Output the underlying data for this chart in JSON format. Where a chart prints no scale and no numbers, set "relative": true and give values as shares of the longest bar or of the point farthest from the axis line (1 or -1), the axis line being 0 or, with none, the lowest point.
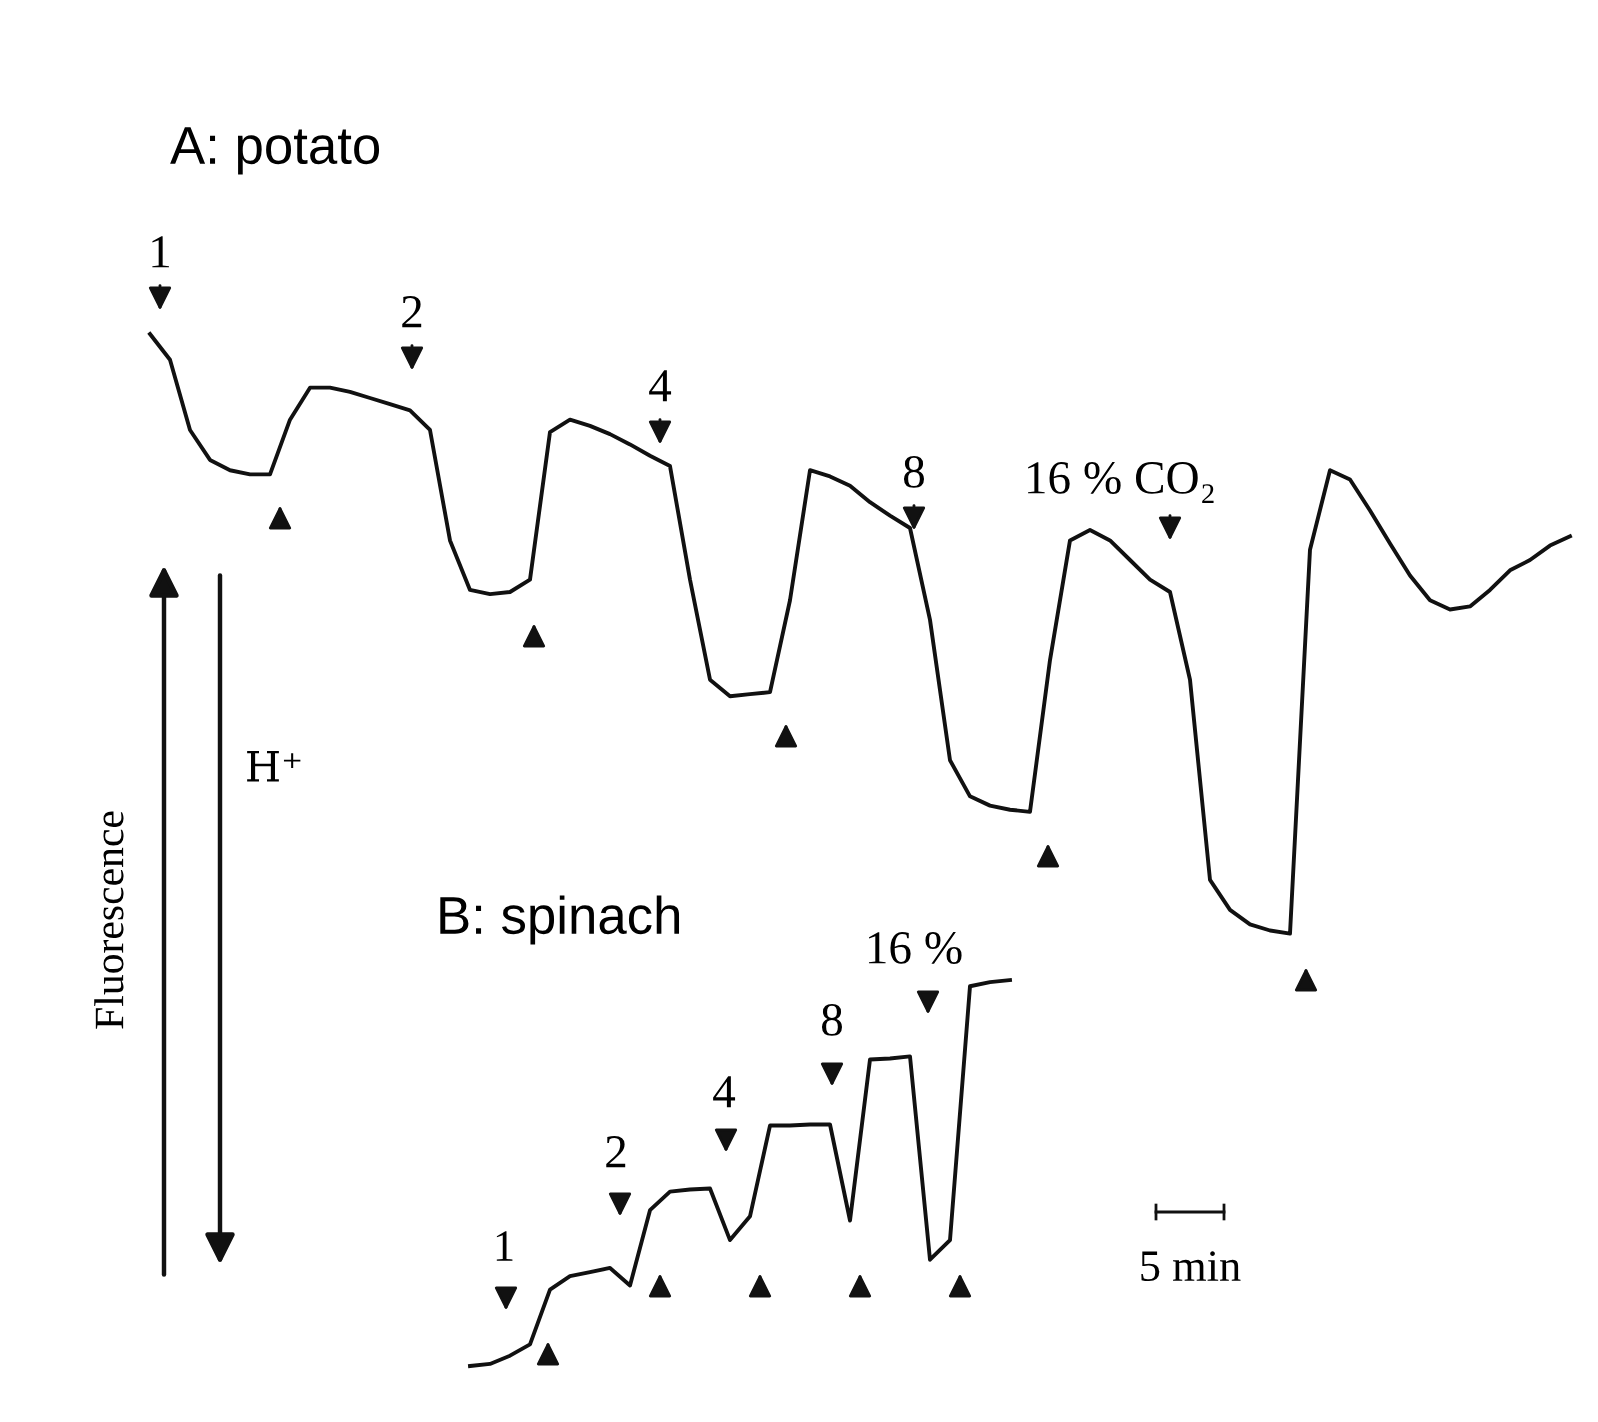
{
  "chart_data": {
    "type": "line",
    "relative": true,
    "ylabel": "Fluorescence",
    "annotations": [
      "A: potato",
      "1",
      "2",
      "4",
      "8",
      "16 % CO₂",
      "H⁺",
      "B: spinach",
      "1",
      "2",
      "4",
      "8",
      "16 %",
      "5 min"
    ],
    "categories": [
      null,
      null,
      null,
      null,
      null,
      null,
      null,
      null,
      null,
      null,
      null,
      null,
      null,
      null,
      null,
      null,
      null,
      null,
      null,
      null,
      null,
      null,
      null,
      null,
      null,
      null,
      null,
      null,
      null,
      null,
      null,
      null,
      null,
      null,
      null,
      null,
      null,
      null,
      null,
      null,
      null,
      null,
      null,
      null,
      null,
      null,
      null,
      null,
      null,
      null,
      null,
      null,
      null,
      null,
      null,
      null,
      null,
      null,
      null,
      null,
      null,
      null,
      null,
      null,
      null,
      null,
      null,
      null,
      null,
      null,
      null,
      null
    ],
    "series": [
      {
        "color": "#111111",
        "values": [
          1.0,
          0.975,
          0.907,
          0.878,
          0.868,
          0.864,
          0.864,
          0.917,
          0.948,
          0.948,
          0.944,
          0.938,
          0.932,
          0.926,
          0.907,
          0.8,
          0.752,
          0.748,
          0.75,
          0.762,
          0.905,
          0.917,
          0.911,
          0.903,
          0.893,
          0.882,
          0.872,
          0.762,
          0.665,
          0.649,
          0.651,
          0.653,
          0.742,
          0.868,
          0.862,
          0.853,
          0.837,
          0.824,
          0.812,
          0.723,
          0.587,
          0.552,
          0.543,
          0.539,
          0.537,
          0.684,
          0.8,
          0.81,
          0.8,
          0.781,
          0.762,
          0.75,
          0.665,
          0.471,
          0.442,
          0.428,
          0.422,
          0.419,
          0.791,
          0.868,
          0.859,
          0.829,
          0.797,
          0.766,
          0.742,
          0.733,
          0.736,
          0.752,
          0.771,
          0.781,
          0.795,
          0.804
        ]
      },
      {
        "color": "#111111",
        "values": [
          null,
          null,
          null,
          null,
          null,
          null,
          null,
          null,
          null,
          null,
          null,
          null,
          null,
          null,
          null,
          null,
          0.0,
          0.002,
          0.01,
          0.021,
          0.074,
          0.087,
          0.091,
          0.095,
          0.078,
          0.151,
          0.169,
          0.171,
          0.172,
          0.122,
          0.145,
          0.233,
          0.233,
          0.234,
          0.234,
          0.141,
          0.297,
          0.298,
          0.3,
          0.103,
          0.122,
          0.368,
          0.372,
          0.374,
          null,
          null,
          null,
          null,
          null,
          null,
          null,
          null,
          null,
          null,
          null,
          null,
          null,
          null,
          null,
          null,
          null,
          null,
          null,
          null,
          null,
          null,
          null,
          null,
          null,
          null,
          null,
          null
        ]
      }
    ]
  }
}
